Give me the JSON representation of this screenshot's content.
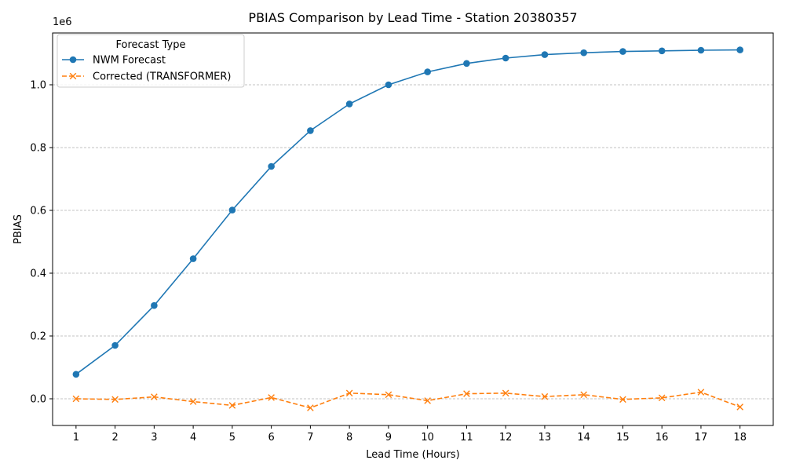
{
  "chart_data": {
    "type": "line",
    "title": "PBIAS Comparison by Lead Time - Station 20380357",
    "xlabel": "Lead Time (Hours)",
    "ylabel": "PBIAS",
    "y_offset_label": "1e6",
    "x": [
      1,
      2,
      3,
      4,
      5,
      6,
      7,
      8,
      9,
      10,
      11,
      12,
      13,
      14,
      15,
      16,
      17,
      18
    ],
    "x_tick_labels": [
      "1",
      "2",
      "3",
      "4",
      "5",
      "6",
      "7",
      "8",
      "9",
      "10",
      "11",
      "12",
      "13",
      "14",
      "15",
      "16",
      "17",
      "18"
    ],
    "y_ticks": [
      0,
      200000,
      400000,
      600000,
      800000,
      1000000
    ],
    "y_tick_labels": [
      "0.0",
      "0.2",
      "0.4",
      "0.6",
      "0.8",
      "1.0"
    ],
    "xlim": [
      0.4,
      18.85
    ],
    "ylim": [
      -85000,
      1165000
    ],
    "grid": "y-dashed",
    "legend": {
      "title": "Forecast Type",
      "placement": "top-left"
    },
    "series": [
      {
        "name": "NWM Forecast",
        "color": "#1f77b4",
        "marker": "circle",
        "linestyle": "solid",
        "values": [
          78000,
          170000,
          297000,
          446000,
          601000,
          740000,
          854000,
          939000,
          1000000,
          1041000,
          1068000,
          1085000,
          1096000,
          1102000,
          1106000,
          1108000,
          1110000,
          1111000
        ]
      },
      {
        "name": "Corrected (TRANSFORMER)",
        "color": "#ff7f0e",
        "marker": "x",
        "linestyle": "dashed",
        "values": [
          0,
          -2000,
          6000,
          -9000,
          -21000,
          4000,
          -29000,
          18000,
          13000,
          -6000,
          16000,
          18000,
          7000,
          13000,
          -2000,
          3000,
          21000,
          -26000
        ]
      }
    ]
  }
}
